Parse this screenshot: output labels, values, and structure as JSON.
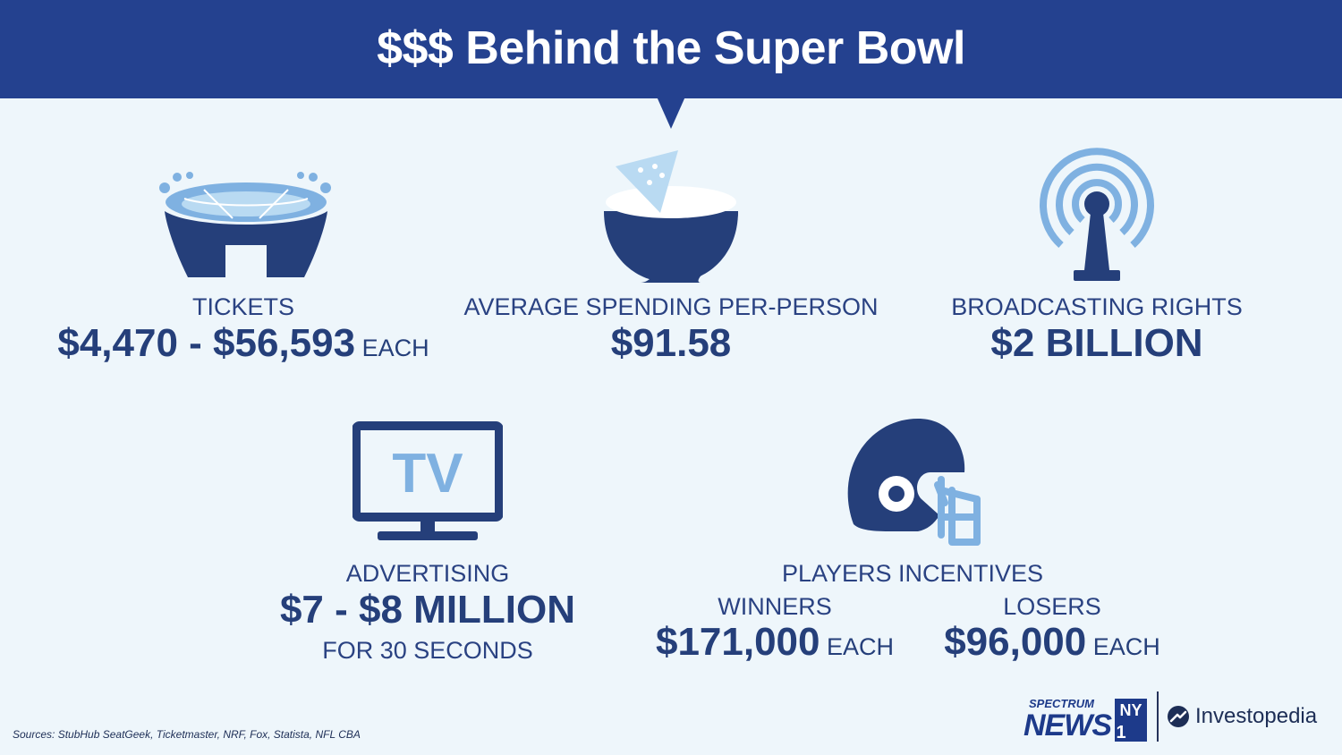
{
  "header": {
    "title": "$$$ Behind the Super Bowl"
  },
  "stats": {
    "tickets": {
      "label": "TICKETS",
      "value": "$4,470 - $56,593",
      "suffix": " EACH",
      "icon": "stadium-icon"
    },
    "spending": {
      "label": "AVERAGE SPENDING PER-PERSON",
      "value": "$91.58",
      "icon": "chip-bowl-icon"
    },
    "broadcasting": {
      "label": "BROADCASTING RIGHTS",
      "value": "$2 BILLION",
      "icon": "broadcast-tower-icon"
    },
    "advertising": {
      "label": "ADVERTISING",
      "value": "$7 - $8 MILLION",
      "note": "FOR 30 SECONDS",
      "icon": "tv-icon",
      "icon_text": "TV"
    },
    "players": {
      "label": "PLAYERS INCENTIVES",
      "icon": "football-helmet-icon",
      "winners": {
        "label": "WINNERS",
        "value": "$171,000",
        "suffix": " EACH"
      },
      "losers": {
        "label": "LOSERS",
        "value": "$96,000",
        "suffix": " EACH"
      }
    }
  },
  "footer": {
    "sources": "Sources: StubHub SeatGeek, Ticketmaster, NRF, Fox, Statista, NFL CBA",
    "logo_spectrum_top": "SPECTRUM",
    "logo_spectrum_news": "NEWS",
    "logo_spectrum_ny": "NY",
    "logo_spectrum_one": "1",
    "logo_investopedia": "Investopedia"
  },
  "colors": {
    "header": "#24418f",
    "background": "#eef6fb",
    "dark_blue": "#253f7a",
    "light_blue": "#7fb1e1"
  }
}
